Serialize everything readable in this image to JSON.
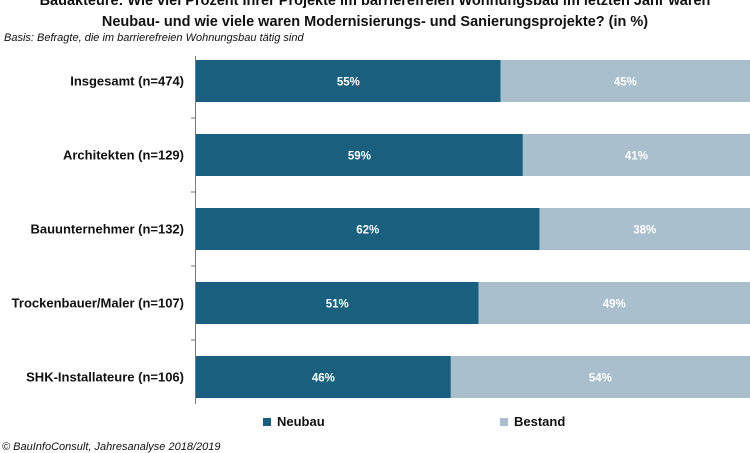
{
  "title_lines": [
    "Bauakteure: Wie viel Prozent Ihrer Projekte im barrierefreien Wohnungsbau im letzten Jahr waren",
    "Neubau- und wie viele waren Modernisierungs- und Sanierungsprojekte? (in %)"
  ],
  "basis": "Basis: Befragte, die im barrierefreien Wohnungsbau tätig sind",
  "footer": "© BauInfoConsult, Jahresanalyse 2018/2019",
  "colors": {
    "neubau": "#18607e",
    "bestand": "#a9bfcd"
  },
  "chart_data": {
    "type": "bar",
    "orientation": "horizontal",
    "stacked": true,
    "percent_stacked": true,
    "categories": [
      "Insgesamt (n=474)",
      "Architekten (n=129)",
      "Bauunternehmer (n=132)",
      "Trockenbauer/Maler (n=107)",
      "SHK-Installateure (n=106)"
    ],
    "series": [
      {
        "name": "Neubau",
        "values": [
          55,
          59,
          62,
          51,
          46
        ],
        "labels": [
          "55%",
          "59%",
          "62%",
          "51%",
          "46%"
        ]
      },
      {
        "name": "Bestand",
        "values": [
          45,
          41,
          38,
          49,
          54
        ],
        "labels": [
          "45%",
          "41%",
          "38%",
          "49%",
          "54%"
        ]
      }
    ],
    "xlim": [
      0,
      100
    ],
    "legend_position": "bottom",
    "grid": false,
    "data_labels": true
  }
}
